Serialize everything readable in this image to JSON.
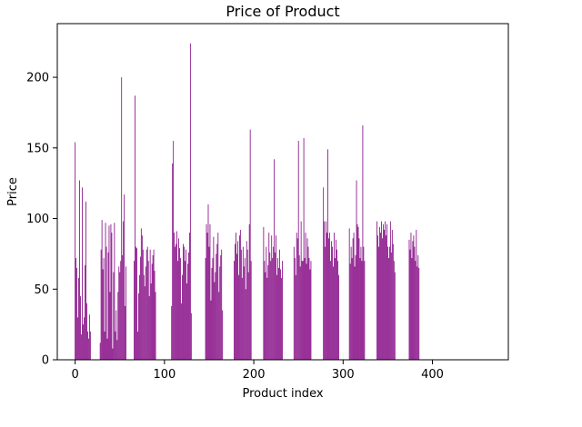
{
  "chart_data": {
    "type": "bar",
    "title": "Price of Product",
    "xlabel": "Product index",
    "ylabel": "Price",
    "xlim": [
      -20,
      485
    ],
    "ylim": [
      0,
      238
    ],
    "x_ticks": [
      0,
      100,
      200,
      300,
      400
    ],
    "y_ticks": [
      0,
      50,
      100,
      150,
      200
    ],
    "grid": false,
    "bar_color": "#800080",
    "series": [
      {
        "x_start": 0,
        "x_step": 1,
        "values": [
          154,
          72,
          65,
          30,
          58,
          127,
          45,
          18,
          122,
          25,
          30,
          67,
          112,
          40,
          20,
          15,
          32,
          20,
          0,
          0,
          0,
          0,
          0,
          0,
          0,
          0,
          0,
          0,
          12,
          78,
          99,
          64,
          72,
          20,
          97,
          80,
          15,
          76,
          95,
          48,
          96,
          90,
          8,
          62,
          97,
          20,
          35,
          14,
          48,
          66,
          62,
          70,
          200,
          74,
          98,
          117,
          38,
          66,
          0,
          0,
          0,
          0,
          0,
          0,
          0,
          0,
          70,
          187,
          80,
          79,
          20,
          47,
          60,
          73,
          93,
          88,
          78,
          60,
          52,
          66,
          78,
          80,
          70,
          45,
          78,
          54,
          68,
          74,
          78,
          63,
          48,
          0,
          0,
          0,
          0,
          0,
          0,
          0,
          0,
          0,
          0,
          0,
          0,
          0,
          0,
          0,
          0,
          0,
          38,
          139,
          155,
          90,
          80,
          82,
          91,
          70,
          86,
          79,
          72,
          40,
          60,
          82,
          80,
          70,
          78,
          54,
          68,
          76,
          90,
          224,
          33,
          0,
          0,
          0,
          0,
          0,
          0,
          0,
          0,
          0,
          0,
          0,
          0,
          0,
          0,
          0,
          72,
          96,
          90,
          110,
          80,
          96,
          42,
          65,
          72,
          87,
          55,
          62,
          75,
          82,
          90,
          48,
          66,
          74,
          78,
          35,
          0,
          0,
          0,
          0,
          0,
          0,
          0,
          0,
          0,
          0,
          0,
          0,
          70,
          82,
          90,
          75,
          84,
          60,
          88,
          92,
          78,
          58,
          80,
          66,
          72,
          50,
          84,
          78,
          62,
          96,
          163,
          70,
          0,
          0,
          0,
          0,
          0,
          0,
          0,
          0,
          0,
          0,
          0,
          0,
          0,
          94,
          70,
          62,
          80,
          58,
          67,
          90,
          76,
          70,
          88,
          72,
          80,
          142,
          76,
          88,
          60,
          72,
          65,
          78,
          64,
          58,
          70,
          0,
          0,
          0,
          0,
          0,
          0,
          0,
          0,
          0,
          0,
          0,
          0,
          80,
          72,
          60,
          90,
          86,
          155,
          74,
          66,
          98,
          70,
          70,
          157,
          72,
          90,
          68,
          86,
          80,
          72,
          64,
          70,
          0,
          0,
          0,
          0,
          0,
          0,
          0,
          0,
          0,
          0,
          0,
          0,
          0,
          122,
          98,
          80,
          98,
          90,
          149,
          86,
          90,
          70,
          84,
          80,
          66,
          90,
          72,
          85,
          78,
          70,
          60,
          0,
          0,
          0,
          0,
          0,
          0,
          0,
          0,
          0,
          0,
          0,
          93,
          68,
          80,
          72,
          86,
          90,
          66,
          74,
          127,
          96,
          94,
          86,
          72,
          80,
          70,
          166,
          80,
          70,
          0,
          0,
          0,
          0,
          0,
          0,
          0,
          0,
          0,
          0,
          0,
          0,
          0,
          98,
          88,
          80,
          94,
          90,
          98,
          86,
          96,
          92,
          98,
          88,
          96,
          80,
          72,
          80,
          98,
          76,
          92,
          82,
          70,
          62,
          0,
          0,
          0,
          0,
          0,
          0,
          0,
          0,
          0,
          0,
          0,
          0,
          0,
          0,
          0,
          85,
          78,
          90,
          72,
          84,
          88,
          80,
          70,
          92,
          66,
          74,
          65,
          0,
          0,
          0,
          0,
          0,
          0,
          0,
          0,
          0,
          0,
          0,
          0,
          0,
          0,
          0,
          0,
          0,
          0,
          0,
          0,
          0,
          0,
          0,
          0,
          0,
          0,
          0,
          0,
          0,
          0,
          0,
          0,
          0,
          0,
          0,
          0,
          0,
          0,
          0,
          0,
          0,
          0,
          0,
          0,
          0,
          0,
          0,
          0,
          0,
          0,
          0,
          0,
          0,
          0,
          0,
          0,
          0,
          0,
          0,
          0,
          0,
          0,
          0,
          0,
          0,
          0,
          0,
          0,
          0,
          0,
          0,
          0,
          0,
          0,
          0,
          0,
          0,
          0,
          0,
          0,
          0,
          0,
          0,
          0,
          0,
          0,
          0,
          0,
          0,
          0,
          0,
          0
        ]
      }
    ]
  }
}
